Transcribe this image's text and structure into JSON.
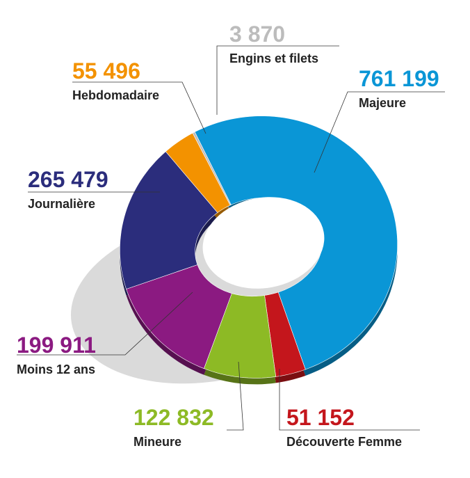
{
  "chart_data": {
    "type": "pie",
    "categories": [
      "Majeure",
      "Découverte Femme",
      "Mineure",
      "Moins 12 ans",
      "Journalière",
      "Hebdomadaire",
      "Engins et filets"
    ],
    "values": [
      761199,
      51152,
      122832,
      199911,
      265479,
      55496,
      3870
    ],
    "value_labels": [
      "761 199",
      "51 152",
      "122 832",
      "199 911",
      "265 479",
      "55 496",
      "3 870"
    ],
    "colors": [
      "#0a96d6",
      "#c4161c",
      "#8dba25",
      "#8b1a81",
      "#2b2d7c",
      "#f39200",
      "#bcbcbc"
    ]
  }
}
